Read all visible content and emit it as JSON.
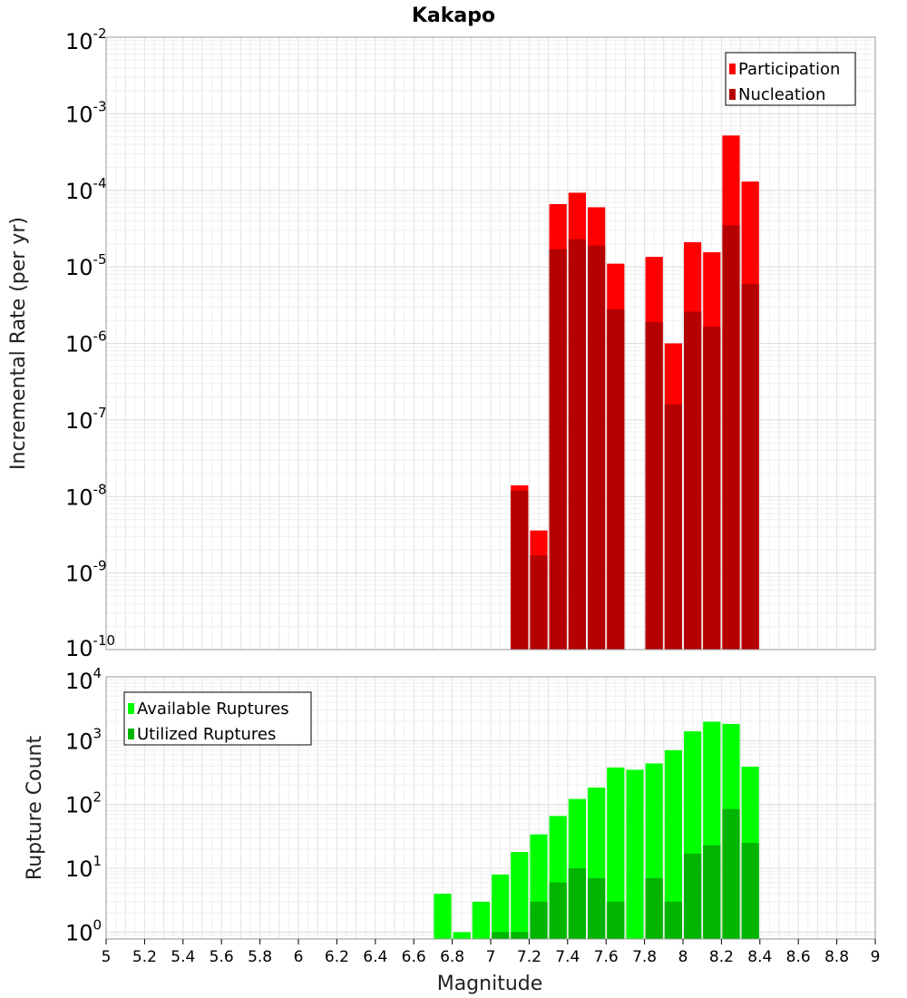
{
  "chart_data": {
    "title": "Kakapo",
    "xlabel": "Magnitude",
    "x_ticks": [
      "5",
      "5.2",
      "5.4",
      "5.6",
      "5.8",
      "6",
      "6.2",
      "6.4",
      "6.6",
      "6.8",
      "7",
      "7.2",
      "7.4",
      "7.6",
      "7.8",
      "8",
      "8.2",
      "8.4",
      "8.6",
      "8.8",
      "9"
    ],
    "xlim": [
      5,
      9
    ],
    "panels": [
      {
        "type": "bar",
        "ylabel": "Incremental Rate (per yr)",
        "yscale": "log",
        "ylim": [
          1e-10,
          0.01
        ],
        "y_tick_exponents": [
          "-2",
          "-3",
          "-4",
          "-5",
          "-6",
          "-7",
          "-8",
          "-9",
          "-10"
        ],
        "legend_position": "top-right",
        "bin_width": 0.1,
        "series": [
          {
            "name": "Participation",
            "color": "#ff0000",
            "x": [
              7.05,
              7.15,
              7.25,
              7.35,
              7.45,
              7.55,
              7.65,
              7.85,
              7.95,
              8.05,
              8.15,
              8.25,
              8.35
            ],
            "values": [
              1e-10,
              1.4e-08,
              3.6e-09,
              6.6e-05,
              9.3e-05,
              6e-05,
              1.1e-05,
              1.35e-05,
              1e-06,
              2.1e-05,
              1.55e-05,
              0.00052,
              0.00013
            ]
          },
          {
            "name": "Nucleation",
            "color": "#b40000",
            "x": [
              7.05,
              7.15,
              7.25,
              7.35,
              7.45,
              7.55,
              7.65,
              7.85,
              7.95,
              8.05,
              8.15,
              8.25,
              8.35
            ],
            "values": [
              1e-10,
              1.2e-08,
              1.7e-09,
              1.7e-05,
              2.3e-05,
              1.9e-05,
              2.8e-06,
              1.9e-06,
              1.6e-07,
              2.6e-06,
              1.65e-06,
              3.5e-05,
              6e-06
            ]
          }
        ]
      },
      {
        "type": "bar",
        "ylabel": "Rupture Count",
        "yscale": "log",
        "ylim": [
          0.78,
          10000
        ],
        "y_tick_exponents": [
          "4",
          "3",
          "2",
          "1",
          "0"
        ],
        "legend_position": "top-left",
        "bin_width": 0.1,
        "series": [
          {
            "name": "Available Ruptures",
            "color": "#00ff00",
            "x": [
              6.75,
              6.85,
              6.95,
              7.05,
              7.15,
              7.25,
              7.35,
              7.45,
              7.55,
              7.65,
              7.75,
              7.85,
              7.95,
              8.05,
              8.15,
              8.25,
              8.35
            ],
            "values": [
              4,
              1,
              3,
              8,
              18,
              34,
              66,
              122,
              184,
              380,
              350,
              440,
              710,
              1400,
              1980,
              1830,
              390
            ]
          },
          {
            "name": "Utilized Ruptures",
            "color": "#00b400",
            "x": [
              6.75,
              6.85,
              6.95,
              7.05,
              7.15,
              7.25,
              7.35,
              7.45,
              7.55,
              7.65,
              7.75,
              7.85,
              7.95,
              8.05,
              8.15,
              8.25,
              8.35
            ],
            "values": [
              0,
              0,
              0,
              1,
              1,
              3,
              6,
              10,
              7,
              3,
              0,
              7,
              3,
              17,
              23,
              85,
              25
            ]
          }
        ]
      }
    ]
  }
}
